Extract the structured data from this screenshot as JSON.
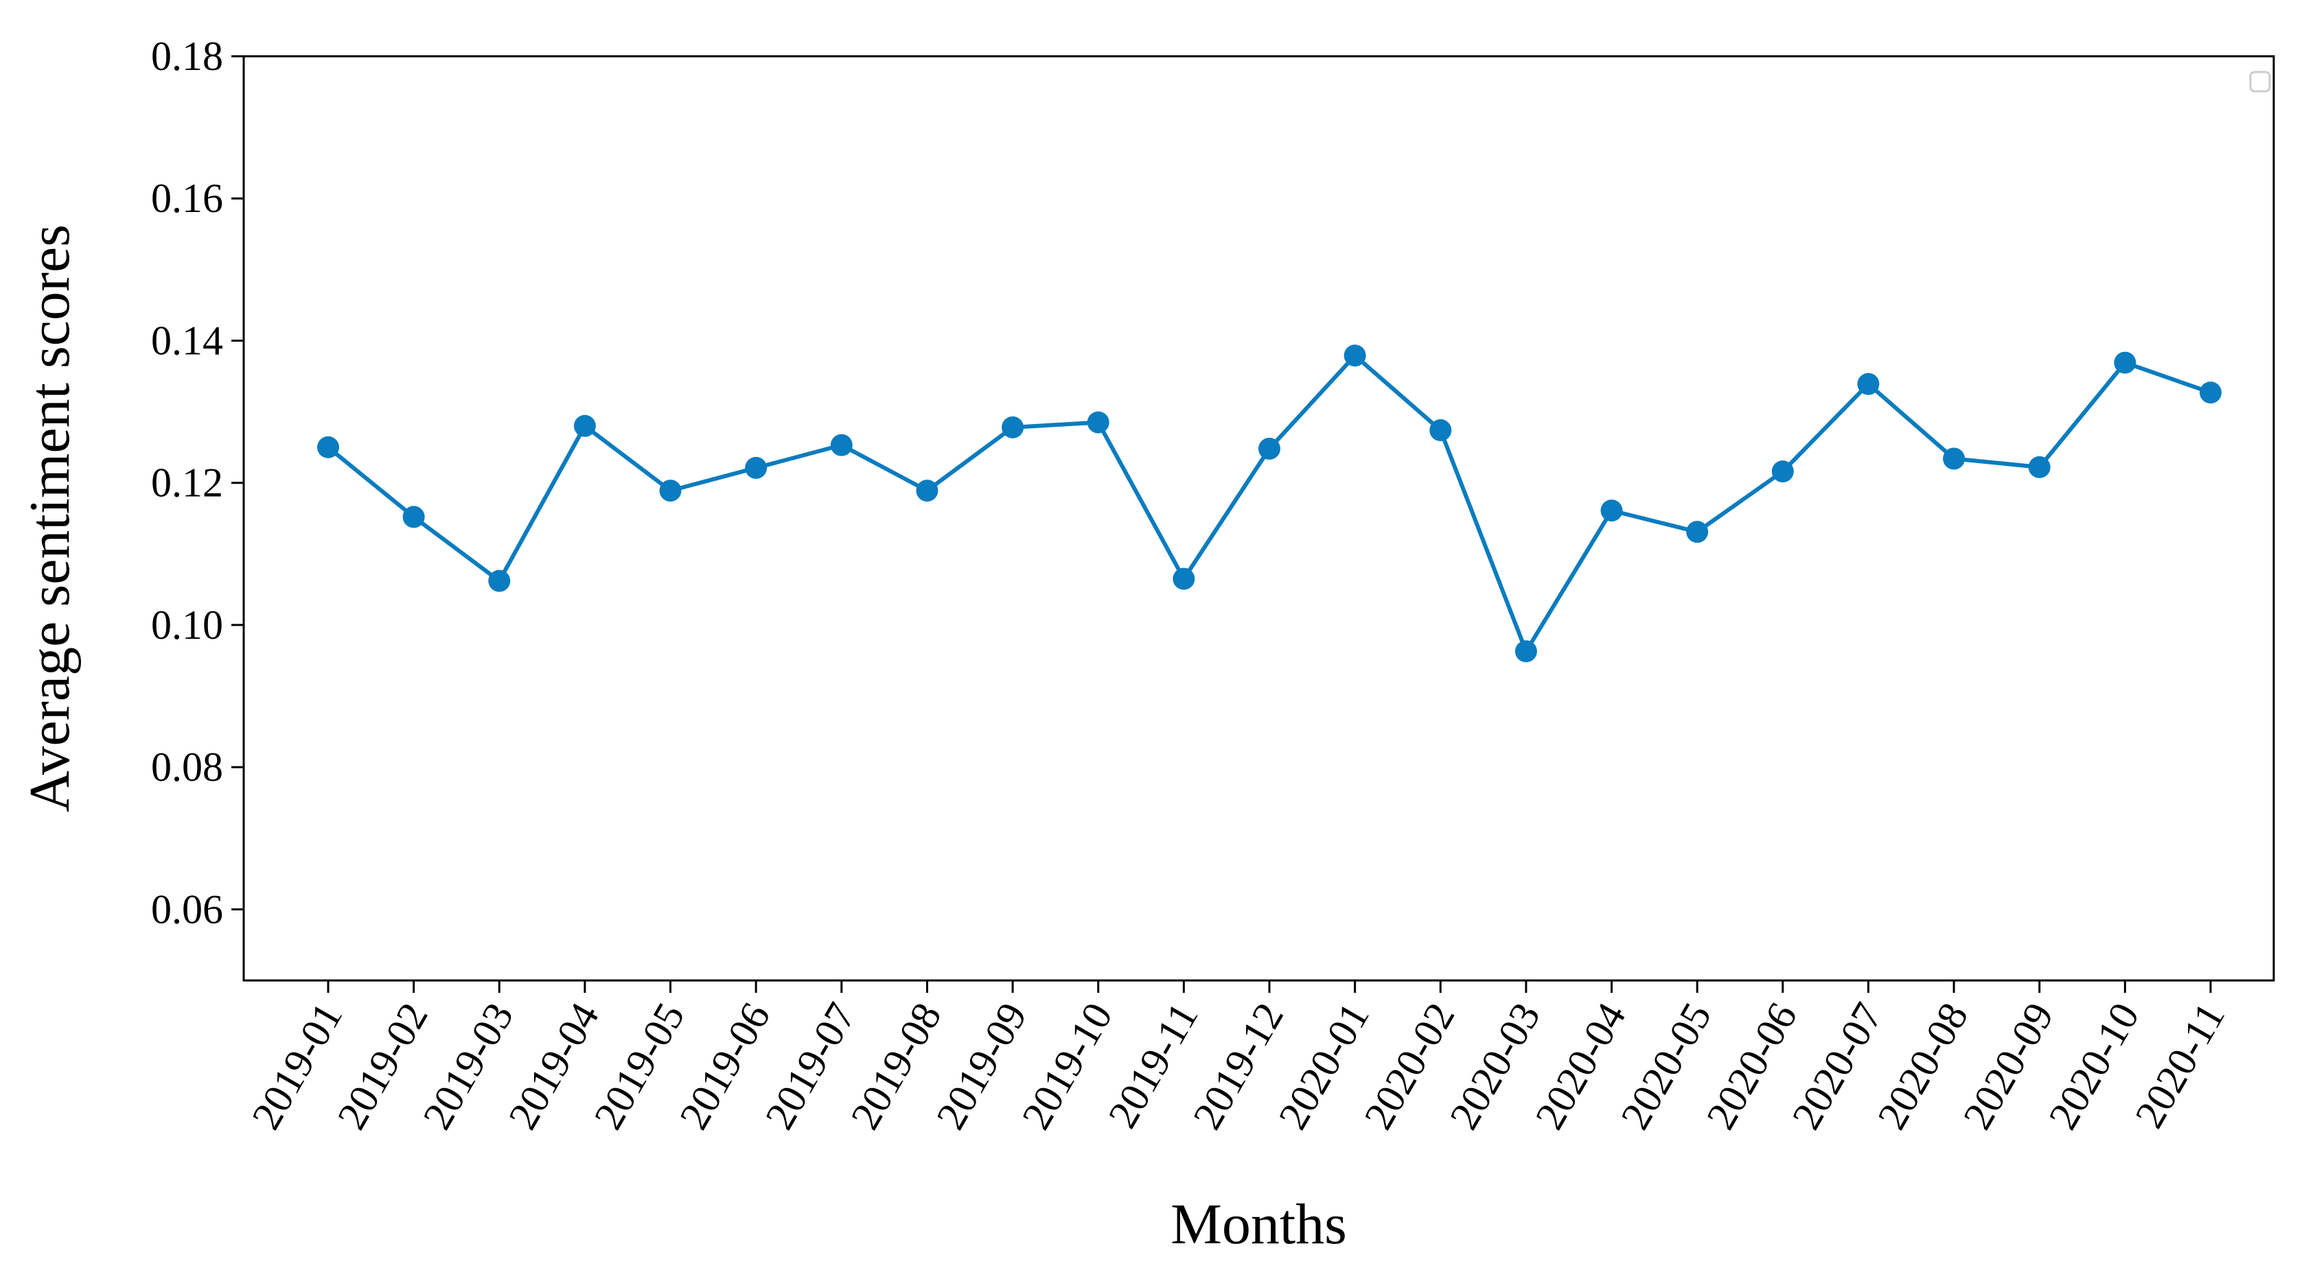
{
  "chart_data": {
    "type": "line",
    "title": "",
    "xlabel": "Months",
    "ylabel": "Average sentiment scores",
    "categories": [
      "2019-01",
      "2019-02",
      "2019-03",
      "2019-04",
      "2019-05",
      "2019-06",
      "2019-07",
      "2019-08",
      "2019-09",
      "2019-10",
      "2019-11",
      "2019-12",
      "2020-01",
      "2020-02",
      "2020-03",
      "2020-04",
      "2020-05",
      "2020-06",
      "2020-07",
      "2020-08",
      "2020-09",
      "2020-10",
      "2020-11"
    ],
    "series": [
      {
        "values": [
          0.125,
          0.1152,
          0.1062,
          0.128,
          0.1189,
          0.1221,
          0.1253,
          0.1189,
          0.1278,
          0.1285,
          0.1065,
          0.1248,
          0.1379,
          0.1274,
          0.0963,
          0.1161,
          0.1131,
          0.1216,
          0.1339,
          0.1234,
          0.1222,
          0.1369,
          0.1327
        ],
        "color": "#0a7cbf"
      }
    ],
    "ylim": [
      0.05,
      0.18
    ],
    "yticks": [
      0.06,
      0.08,
      0.1,
      0.12,
      0.14,
      0.16,
      0.18
    ],
    "ytick_labels": [
      "0.06",
      "0.08",
      "0.10",
      "0.12",
      "0.14",
      "0.16",
      "0.18"
    ],
    "grid": false,
    "legend": "top-right (empty)"
  }
}
